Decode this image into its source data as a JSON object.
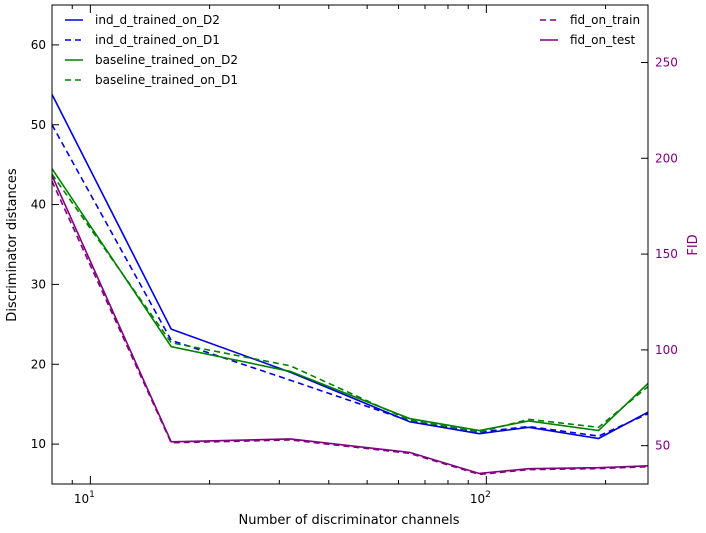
{
  "chart_data": {
    "type": "line",
    "title": "",
    "xlabel": "Number of discriminator channels",
    "ylabel": "Discriminator distances",
    "y2label": "FID",
    "xscale": "log",
    "xlim": [
      8,
      256
    ],
    "ylim": [
      5,
      65
    ],
    "y2lim": [
      30,
      280
    ],
    "x": [
      8,
      16,
      32,
      64,
      96,
      128,
      192,
      256
    ],
    "x_tick_labels": [
      {
        "value": 10,
        "base": "10",
        "exp": "1"
      },
      {
        "value": 100,
        "base": "10",
        "exp": "2"
      }
    ],
    "y_ticks": [
      10,
      20,
      30,
      40,
      50,
      60
    ],
    "y2_ticks": [
      50,
      100,
      150,
      200,
      250
    ],
    "series": [
      {
        "name": "ind_d_trained_on_D2",
        "axis": "left",
        "color": "#0000dd",
        "dash": "solid",
        "values": [
          53.8,
          24.4,
          19.0,
          12.8,
          11.3,
          12.1,
          10.7,
          14.0
        ]
      },
      {
        "name": "ind_d_trained_on_D1",
        "axis": "left",
        "color": "#0000dd",
        "dash": "dashed",
        "values": [
          50.0,
          23.0,
          18.0,
          12.9,
          11.5,
          12.2,
          11.0,
          13.8
        ]
      },
      {
        "name": "baseline_trained_on_D2",
        "axis": "left",
        "color": "#008000",
        "dash": "solid",
        "values": [
          44.5,
          22.2,
          19.1,
          13.2,
          11.7,
          12.9,
          11.7,
          17.6
        ]
      },
      {
        "name": "baseline_trained_on_D1",
        "axis": "left",
        "color": "#008000",
        "dash": "dashed",
        "values": [
          43.8,
          22.7,
          19.8,
          13.0,
          11.5,
          13.1,
          12.1,
          17.2
        ]
      },
      {
        "name": "fid_on_train",
        "axis": "right",
        "color": "#800080",
        "dash": "dashed",
        "values": [
          188,
          51.5,
          53,
          46,
          35,
          37.5,
          38,
          39
        ]
      },
      {
        "name": "fid_on_test",
        "axis": "right",
        "color": "#800080",
        "dash": "solid",
        "values": [
          191,
          52,
          53.5,
          46.5,
          35.5,
          38,
          38.5,
          39.5
        ]
      }
    ],
    "legend_left": [
      "ind_d_trained_on_D2",
      "ind_d_trained_on_D1",
      "baseline_trained_on_D2",
      "baseline_trained_on_D1"
    ],
    "legend_right": [
      "fid_on_train",
      "fid_on_test"
    ]
  }
}
